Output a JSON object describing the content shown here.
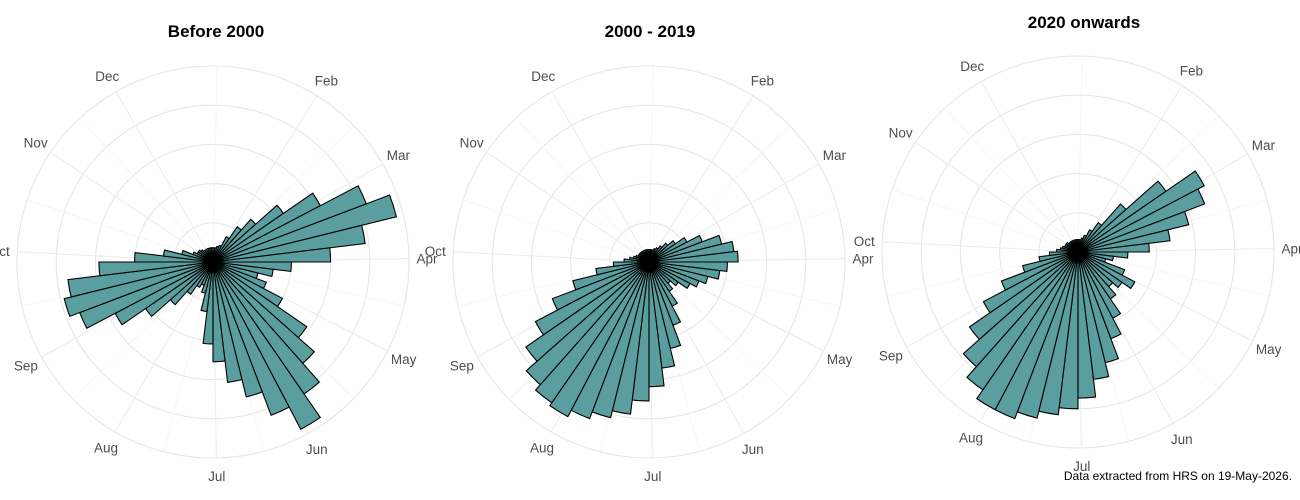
{
  "caption": "Data extracted from HRS on 19-May-2026.",
  "colors": {
    "bar_fill": "#5b9ea0",
    "bar_stroke": "#000000",
    "grid": "#e6e6e6"
  },
  "chart_data": [
    {
      "type": "bar",
      "coord": "polar",
      "title": "Before 2000",
      "theta_labels": [
        "Dec",
        "Feb",
        "Mar",
        "Apr",
        "May",
        "Jun",
        "Jul",
        "Aug",
        "Sep",
        "Oct",
        "Nov"
      ],
      "bins_per_turn": 52,
      "start_week": 1,
      "values": [
        0.4,
        0.4,
        0.45,
        0.5,
        0.8,
        1.2,
        1.6,
        2.4,
        3.4,
        4.6,
        5.3,
        4.3,
        3.3,
        2.2,
        1.7,
        1.3,
        1.6,
        2.2,
        3.2,
        3.8,
        4.5,
        5.3,
        4.6,
        3.9,
        3.4,
        2.8,
        2.3,
        1.4,
        0.9,
        0.7,
        0.8,
        1.1,
        1.6,
        2.3,
        3.1,
        4.0,
        4.3,
        4.1,
        3.2,
        2.2,
        1.4,
        0.9,
        0.6,
        0.5,
        0.5,
        0.45,
        0.4,
        0.4,
        0.4,
        0.4,
        0.4,
        0.4
      ],
      "ylim": [
        0,
        5.5
      ],
      "grid": true
    },
    {
      "type": "bar",
      "coord": "polar",
      "title": "2000 - 2019",
      "theta_labels": [
        "Dec",
        "Feb",
        "Mar",
        "Apr",
        "May",
        "Jun",
        "Jul",
        "Aug",
        "Sep",
        "Oct",
        "Nov"
      ],
      "bins_per_turn": 52,
      "start_week": 1,
      "values": [
        0.35,
        0.35,
        0.35,
        0.4,
        0.45,
        0.55,
        0.7,
        0.9,
        1.2,
        1.6,
        2.1,
        2.4,
        2.5,
        2.2,
        2.0,
        1.7,
        1.5,
        1.3,
        1.0,
        0.8,
        1.0,
        1.4,
        1.9,
        2.5,
        3.0,
        3.5,
        3.9,
        4.3,
        4.5,
        4.7,
        4.9,
        4.8,
        4.6,
        4.2,
        3.6,
        2.9,
        2.2,
        1.5,
        1.0,
        0.7,
        0.55,
        0.45,
        0.4,
        0.35,
        0.35,
        0.35,
        0.35,
        0.35,
        0.35,
        0.35,
        0.35,
        0.35
      ],
      "ylim": [
        0,
        5.5
      ],
      "grid": true
    },
    {
      "type": "bar",
      "coord": "polar",
      "title": "2020 onwards",
      "theta_labels": [
        "Dec",
        "Feb",
        "Mar",
        "Apr",
        "May",
        "Jun",
        "Jul",
        "Aug",
        "Sep",
        "Oct",
        "Nov"
      ],
      "bins_per_turn": 52,
      "start_week": 1,
      "values": [
        0.35,
        0.35,
        0.4,
        0.5,
        0.7,
        1.0,
        1.8,
        3.0,
        4.0,
        3.8,
        3.2,
        2.6,
        2.0,
        1.4,
        1.0,
        0.8,
        1.4,
        1.8,
        1.5,
        1.3,
        1.6,
        2.1,
        2.6,
        3.2,
        3.6,
        4.1,
        4.4,
        4.6,
        4.8,
        5.0,
        5.0,
        4.7,
        4.3,
        3.7,
        3.0,
        2.3,
        1.6,
        1.1,
        0.8,
        0.6,
        0.5,
        0.45,
        0.4,
        0.4,
        0.4,
        0.35,
        0.35,
        0.35,
        0.35,
        0.35,
        0.35,
        0.35
      ],
      "ylim": [
        0,
        5.5
      ],
      "grid": true
    }
  ]
}
